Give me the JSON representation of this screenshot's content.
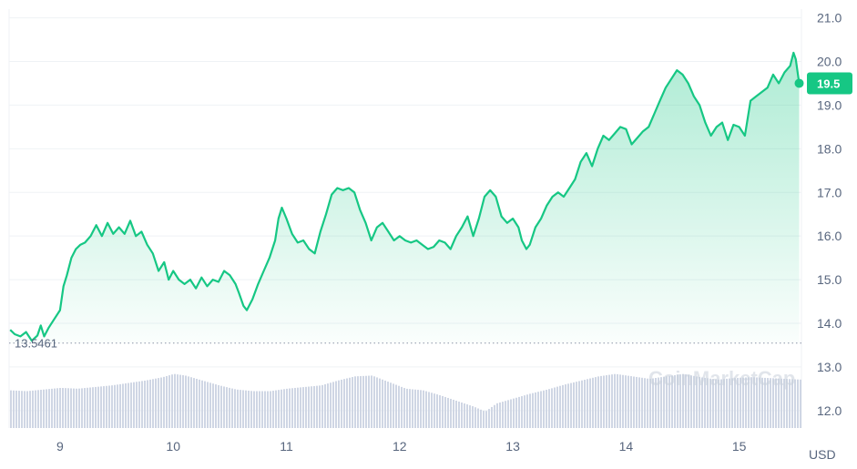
{
  "chart_data": {
    "type": "area",
    "currency_label": "USD",
    "current_price_label": "19.5",
    "baseline_label": "13.5461",
    "baseline_value": 13.5461,
    "watermark": "CoinMarketCap",
    "x_tick_labels": [
      "9",
      "10",
      "11",
      "12",
      "13",
      "14",
      "15"
    ],
    "x_ticks": [
      9,
      10,
      11,
      12,
      13,
      14,
      15
    ],
    "y_tick_labels": [
      "21.0",
      "20.0",
      "19.0",
      "18.0",
      "17.0",
      "16.0",
      "15.0",
      "14.0",
      "13.0",
      "12.0"
    ],
    "y_ticks": [
      21,
      20,
      19,
      18,
      17,
      16,
      15,
      14,
      13,
      12
    ],
    "x_range": [
      8.55,
      15.55
    ],
    "y_range": [
      11.6,
      21.2
    ],
    "grid": true,
    "colors": {
      "line": "#16c784",
      "fill_top": "#16c784",
      "badge": "#16c784",
      "volume": "#cfd6e4",
      "grid": "#eff2f5",
      "axis_text": "#58667e"
    },
    "price_series": [
      [
        8.56,
        13.85
      ],
      [
        8.6,
        13.75
      ],
      [
        8.65,
        13.7
      ],
      [
        8.7,
        13.8
      ],
      [
        8.75,
        13.6
      ],
      [
        8.8,
        13.72
      ],
      [
        8.83,
        13.95
      ],
      [
        8.86,
        13.7
      ],
      [
        8.9,
        13.9
      ],
      [
        8.95,
        14.1
      ],
      [
        9.0,
        14.3
      ],
      [
        9.03,
        14.85
      ],
      [
        9.06,
        15.1
      ],
      [
        9.1,
        15.5
      ],
      [
        9.14,
        15.7
      ],
      [
        9.18,
        15.8
      ],
      [
        9.22,
        15.85
      ],
      [
        9.27,
        16.0
      ],
      [
        9.32,
        16.25
      ],
      [
        9.37,
        16.0
      ],
      [
        9.42,
        16.3
      ],
      [
        9.47,
        16.05
      ],
      [
        9.52,
        16.2
      ],
      [
        9.57,
        16.05
      ],
      [
        9.62,
        16.35
      ],
      [
        9.67,
        16.0
      ],
      [
        9.72,
        16.1
      ],
      [
        9.77,
        15.8
      ],
      [
        9.82,
        15.6
      ],
      [
        9.87,
        15.2
      ],
      [
        9.92,
        15.4
      ],
      [
        9.96,
        15.0
      ],
      [
        10.0,
        15.2
      ],
      [
        10.05,
        15.0
      ],
      [
        10.1,
        14.9
      ],
      [
        10.15,
        15.0
      ],
      [
        10.2,
        14.8
      ],
      [
        10.25,
        15.05
      ],
      [
        10.3,
        14.85
      ],
      [
        10.35,
        15.0
      ],
      [
        10.4,
        14.95
      ],
      [
        10.45,
        15.2
      ],
      [
        10.5,
        15.1
      ],
      [
        10.55,
        14.9
      ],
      [
        10.58,
        14.7
      ],
      [
        10.62,
        14.4
      ],
      [
        10.65,
        14.3
      ],
      [
        10.7,
        14.55
      ],
      [
        10.75,
        14.9
      ],
      [
        10.8,
        15.2
      ],
      [
        10.85,
        15.5
      ],
      [
        10.9,
        15.9
      ],
      [
        10.93,
        16.4
      ],
      [
        10.96,
        16.65
      ],
      [
        11.0,
        16.4
      ],
      [
        11.05,
        16.05
      ],
      [
        11.1,
        15.85
      ],
      [
        11.15,
        15.9
      ],
      [
        11.2,
        15.7
      ],
      [
        11.25,
        15.6
      ],
      [
        11.3,
        16.1
      ],
      [
        11.35,
        16.5
      ],
      [
        11.4,
        16.95
      ],
      [
        11.45,
        17.1
      ],
      [
        11.5,
        17.05
      ],
      [
        11.55,
        17.1
      ],
      [
        11.6,
        17.0
      ],
      [
        11.65,
        16.6
      ],
      [
        11.7,
        16.3
      ],
      [
        11.75,
        15.9
      ],
      [
        11.8,
        16.2
      ],
      [
        11.85,
        16.3
      ],
      [
        11.9,
        16.1
      ],
      [
        11.95,
        15.9
      ],
      [
        12.0,
        16.0
      ],
      [
        12.05,
        15.9
      ],
      [
        12.1,
        15.85
      ],
      [
        12.15,
        15.9
      ],
      [
        12.2,
        15.8
      ],
      [
        12.25,
        15.7
      ],
      [
        12.3,
        15.75
      ],
      [
        12.35,
        15.9
      ],
      [
        12.4,
        15.85
      ],
      [
        12.45,
        15.7
      ],
      [
        12.5,
        16.0
      ],
      [
        12.55,
        16.2
      ],
      [
        12.6,
        16.45
      ],
      [
        12.65,
        16.0
      ],
      [
        12.7,
        16.4
      ],
      [
        12.75,
        16.9
      ],
      [
        12.8,
        17.05
      ],
      [
        12.85,
        16.9
      ],
      [
        12.9,
        16.45
      ],
      [
        12.95,
        16.3
      ],
      [
        13.0,
        16.4
      ],
      [
        13.05,
        16.2
      ],
      [
        13.08,
        15.9
      ],
      [
        13.12,
        15.7
      ],
      [
        13.15,
        15.8
      ],
      [
        13.2,
        16.2
      ],
      [
        13.25,
        16.4
      ],
      [
        13.3,
        16.7
      ],
      [
        13.35,
        16.9
      ],
      [
        13.4,
        17.0
      ],
      [
        13.45,
        16.9
      ],
      [
        13.5,
        17.1
      ],
      [
        13.55,
        17.3
      ],
      [
        13.6,
        17.7
      ],
      [
        13.65,
        17.9
      ],
      [
        13.7,
        17.6
      ],
      [
        13.75,
        18.0
      ],
      [
        13.8,
        18.3
      ],
      [
        13.85,
        18.2
      ],
      [
        13.9,
        18.35
      ],
      [
        13.95,
        18.5
      ],
      [
        14.0,
        18.45
      ],
      [
        14.05,
        18.1
      ],
      [
        14.1,
        18.25
      ],
      [
        14.15,
        18.4
      ],
      [
        14.2,
        18.5
      ],
      [
        14.25,
        18.8
      ],
      [
        14.3,
        19.1
      ],
      [
        14.35,
        19.4
      ],
      [
        14.4,
        19.6
      ],
      [
        14.45,
        19.8
      ],
      [
        14.5,
        19.7
      ],
      [
        14.55,
        19.5
      ],
      [
        14.6,
        19.2
      ],
      [
        14.65,
        19.0
      ],
      [
        14.7,
        18.6
      ],
      [
        14.75,
        18.3
      ],
      [
        14.8,
        18.5
      ],
      [
        14.85,
        18.6
      ],
      [
        14.9,
        18.2
      ],
      [
        14.95,
        18.55
      ],
      [
        15.0,
        18.5
      ],
      [
        15.05,
        18.3
      ],
      [
        15.1,
        19.1
      ],
      [
        15.15,
        19.2
      ],
      [
        15.2,
        19.3
      ],
      [
        15.25,
        19.4
      ],
      [
        15.3,
        19.7
      ],
      [
        15.35,
        19.5
      ],
      [
        15.4,
        19.75
      ],
      [
        15.45,
        19.9
      ],
      [
        15.48,
        20.2
      ],
      [
        15.5,
        20.05
      ],
      [
        15.53,
        19.5
      ]
    ],
    "volume_series": [
      [
        8.55,
        0.46
      ],
      [
        8.7,
        0.45
      ],
      [
        8.85,
        0.47
      ],
      [
        9.0,
        0.49
      ],
      [
        9.15,
        0.48
      ],
      [
        9.3,
        0.5
      ],
      [
        9.45,
        0.52
      ],
      [
        9.6,
        0.55
      ],
      [
        9.75,
        0.58
      ],
      [
        9.9,
        0.62
      ],
      [
        10.0,
        0.66
      ],
      [
        10.1,
        0.64
      ],
      [
        10.25,
        0.58
      ],
      [
        10.4,
        0.52
      ],
      [
        10.55,
        0.47
      ],
      [
        10.7,
        0.45
      ],
      [
        10.85,
        0.45
      ],
      [
        11.0,
        0.48
      ],
      [
        11.15,
        0.5
      ],
      [
        11.3,
        0.52
      ],
      [
        11.45,
        0.58
      ],
      [
        11.6,
        0.63
      ],
      [
        11.75,
        0.64
      ],
      [
        11.9,
        0.56
      ],
      [
        12.05,
        0.48
      ],
      [
        12.2,
        0.46
      ],
      [
        12.35,
        0.4
      ],
      [
        12.5,
        0.33
      ],
      [
        12.65,
        0.26
      ],
      [
        12.75,
        0.2
      ],
      [
        12.85,
        0.3
      ],
      [
        13.0,
        0.36
      ],
      [
        13.15,
        0.42
      ],
      [
        13.3,
        0.47
      ],
      [
        13.45,
        0.53
      ],
      [
        13.6,
        0.58
      ],
      [
        13.75,
        0.63
      ],
      [
        13.9,
        0.66
      ],
      [
        14.05,
        0.63
      ],
      [
        14.2,
        0.6
      ],
      [
        14.35,
        0.63
      ],
      [
        14.5,
        0.66
      ],
      [
        14.65,
        0.62
      ],
      [
        14.8,
        0.59
      ],
      [
        14.95,
        0.61
      ],
      [
        15.1,
        0.62
      ],
      [
        15.25,
        0.61
      ],
      [
        15.4,
        0.6
      ],
      [
        15.55,
        0.59
      ]
    ]
  }
}
